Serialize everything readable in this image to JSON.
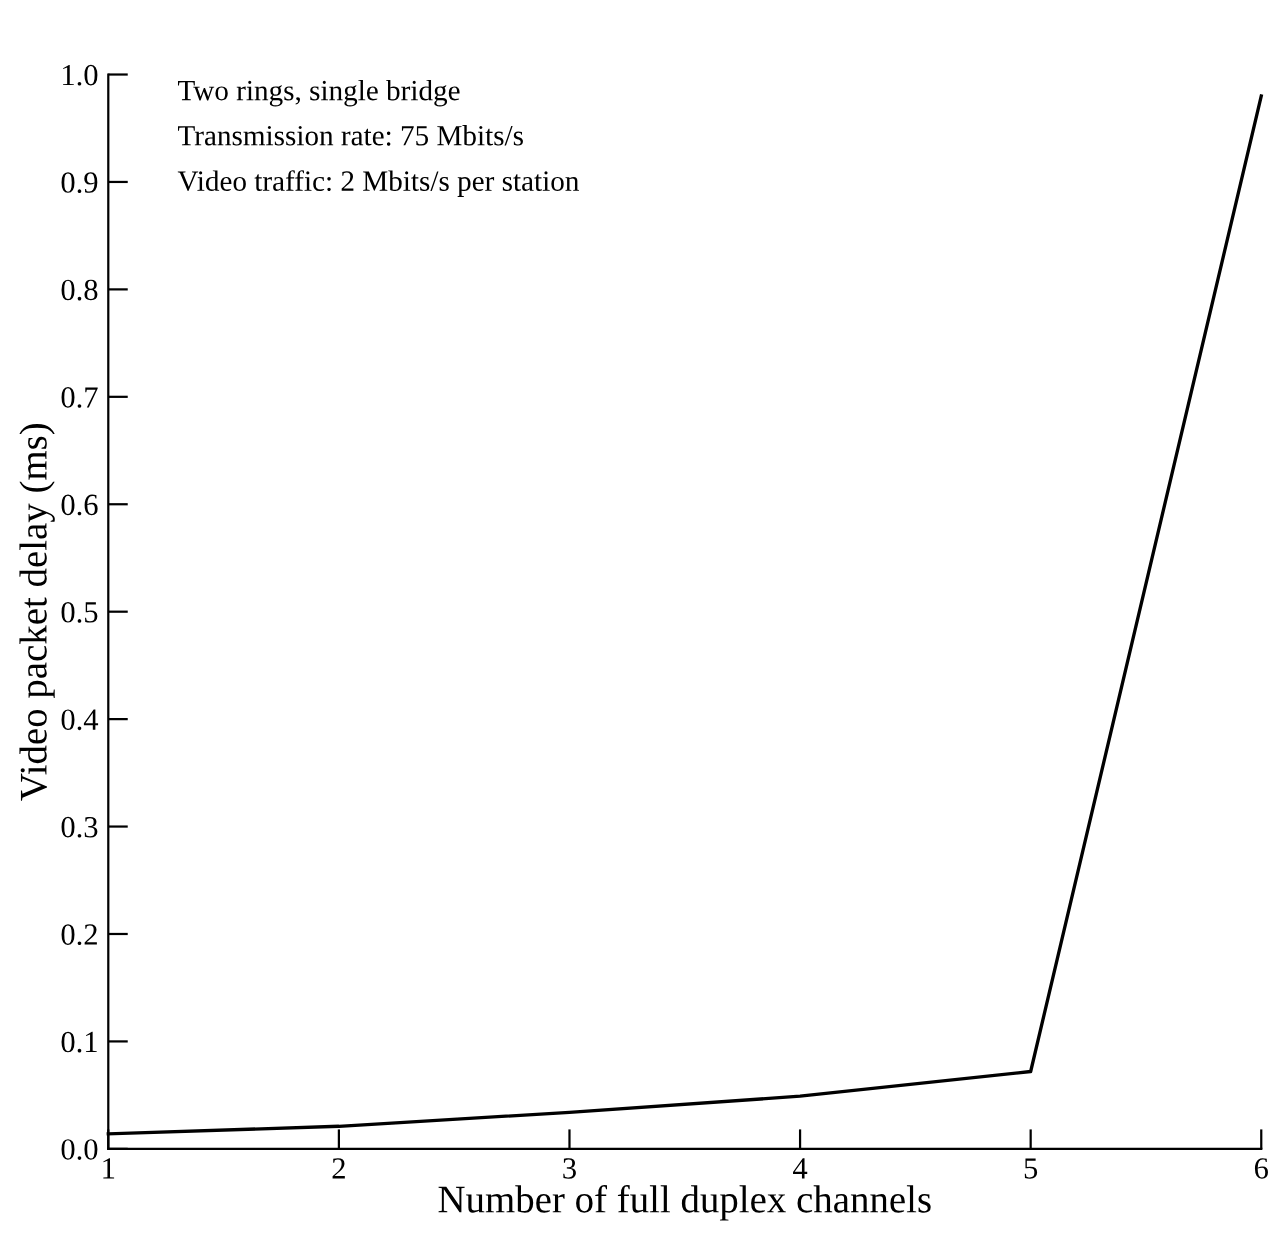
{
  "chart_data": {
    "type": "line",
    "xlabel": "Number of full duplex channels",
    "ylabel": "Video packet delay (ms)",
    "x": [
      1,
      2,
      3,
      4,
      5,
      6
    ],
    "series": [
      {
        "color": "#000000",
        "values": [
          0.014,
          0.021,
          0.034,
          0.049,
          0.072,
          0.98
        ]
      }
    ],
    "xlim": [
      1,
      6
    ],
    "xticks": [
      1,
      2,
      3,
      4,
      5,
      6
    ],
    "ylim": [
      0,
      1.0
    ],
    "yticks": [
      {
        "value": 0,
        "label": "0.0"
      },
      0.1,
      0.2,
      0.3,
      0.4,
      0.5,
      0.6,
      0.7,
      0.8,
      0.9,
      {
        "value": 1.0,
        "label": "1.0"
      }
    ],
    "annotations": [
      "Two rings, single bridge",
      "Transmission rate: 75 Mbits/s",
      "Video traffic: 2 Mbits/s per station"
    ],
    "grid": false,
    "legend": false,
    "marker": "none",
    "line_style": "solid"
  }
}
